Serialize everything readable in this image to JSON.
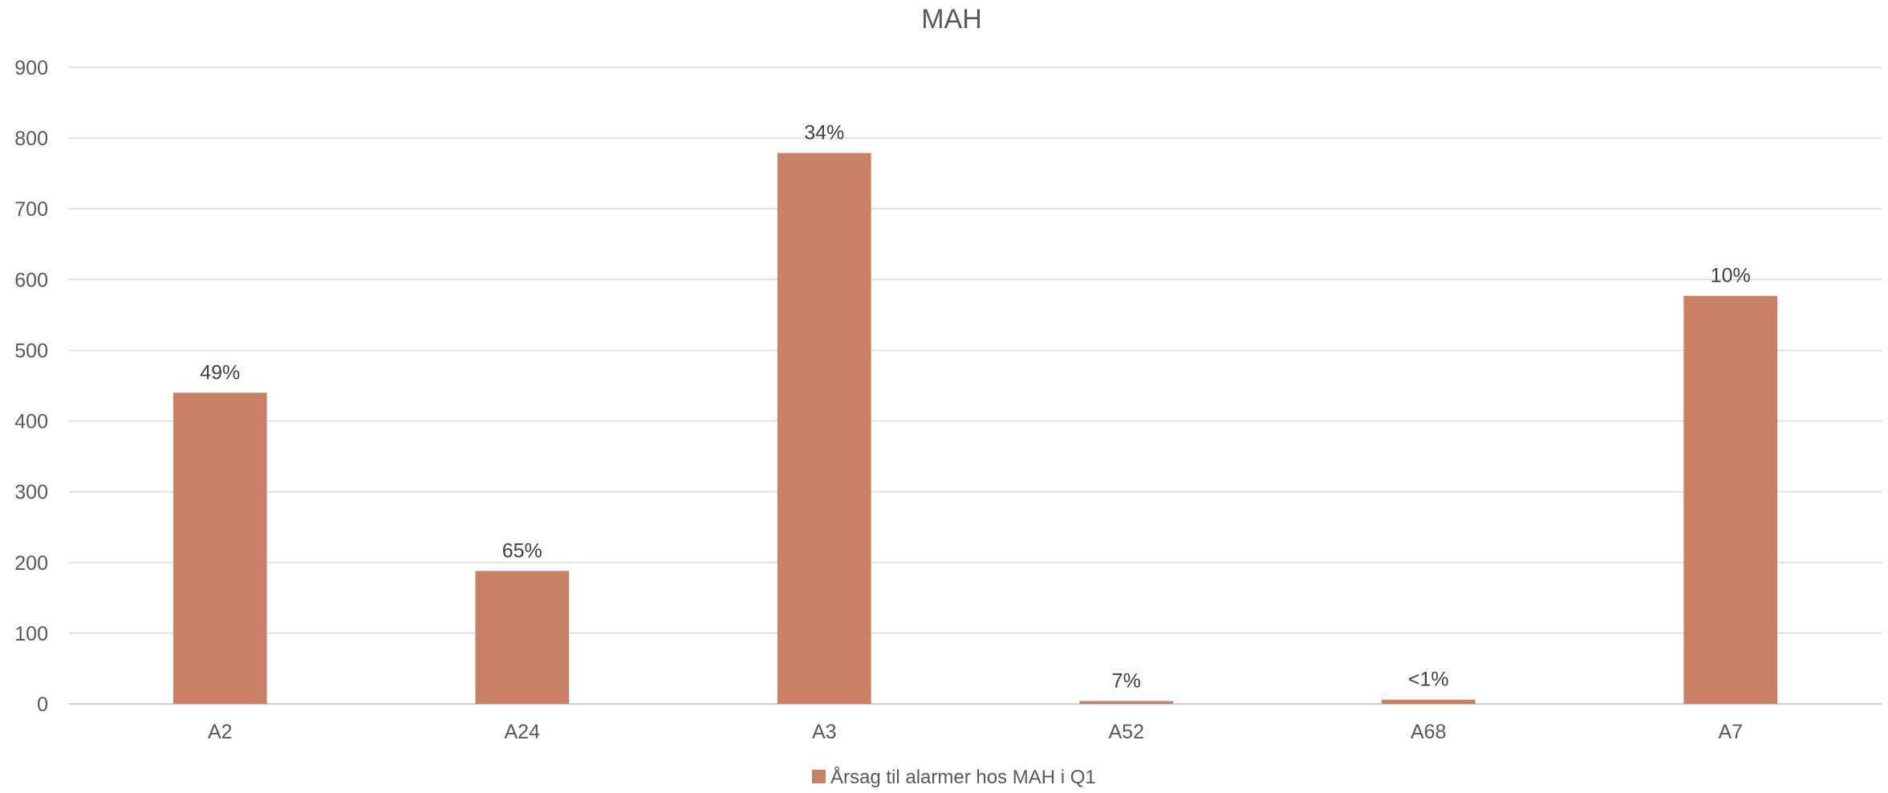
{
  "chart_data": {
    "type": "bar",
    "title": "MAH",
    "xlabel": "",
    "ylabel": "",
    "categories": [
      "A2",
      "A24",
      "A3",
      "A52",
      "A68",
      "A7"
    ],
    "series": [
      {
        "name": "Årsag til alarmer hos MAH i Q1",
        "values": [
          440,
          188,
          779,
          4,
          6,
          577
        ],
        "data_labels": [
          "49%",
          "65%",
          "34%",
          "7%",
          "<1%",
          "10%"
        ],
        "color": "#C98064"
      }
    ],
    "ylim": [
      0,
      900
    ],
    "yticks": [
      0,
      100,
      200,
      300,
      400,
      500,
      600,
      700,
      800,
      900
    ],
    "ytick_labels": [
      "0",
      "100",
      "200",
      "300",
      "400",
      "500",
      "600",
      "700",
      "800",
      "900"
    ],
    "grid": true,
    "legend_position": "bottom"
  }
}
